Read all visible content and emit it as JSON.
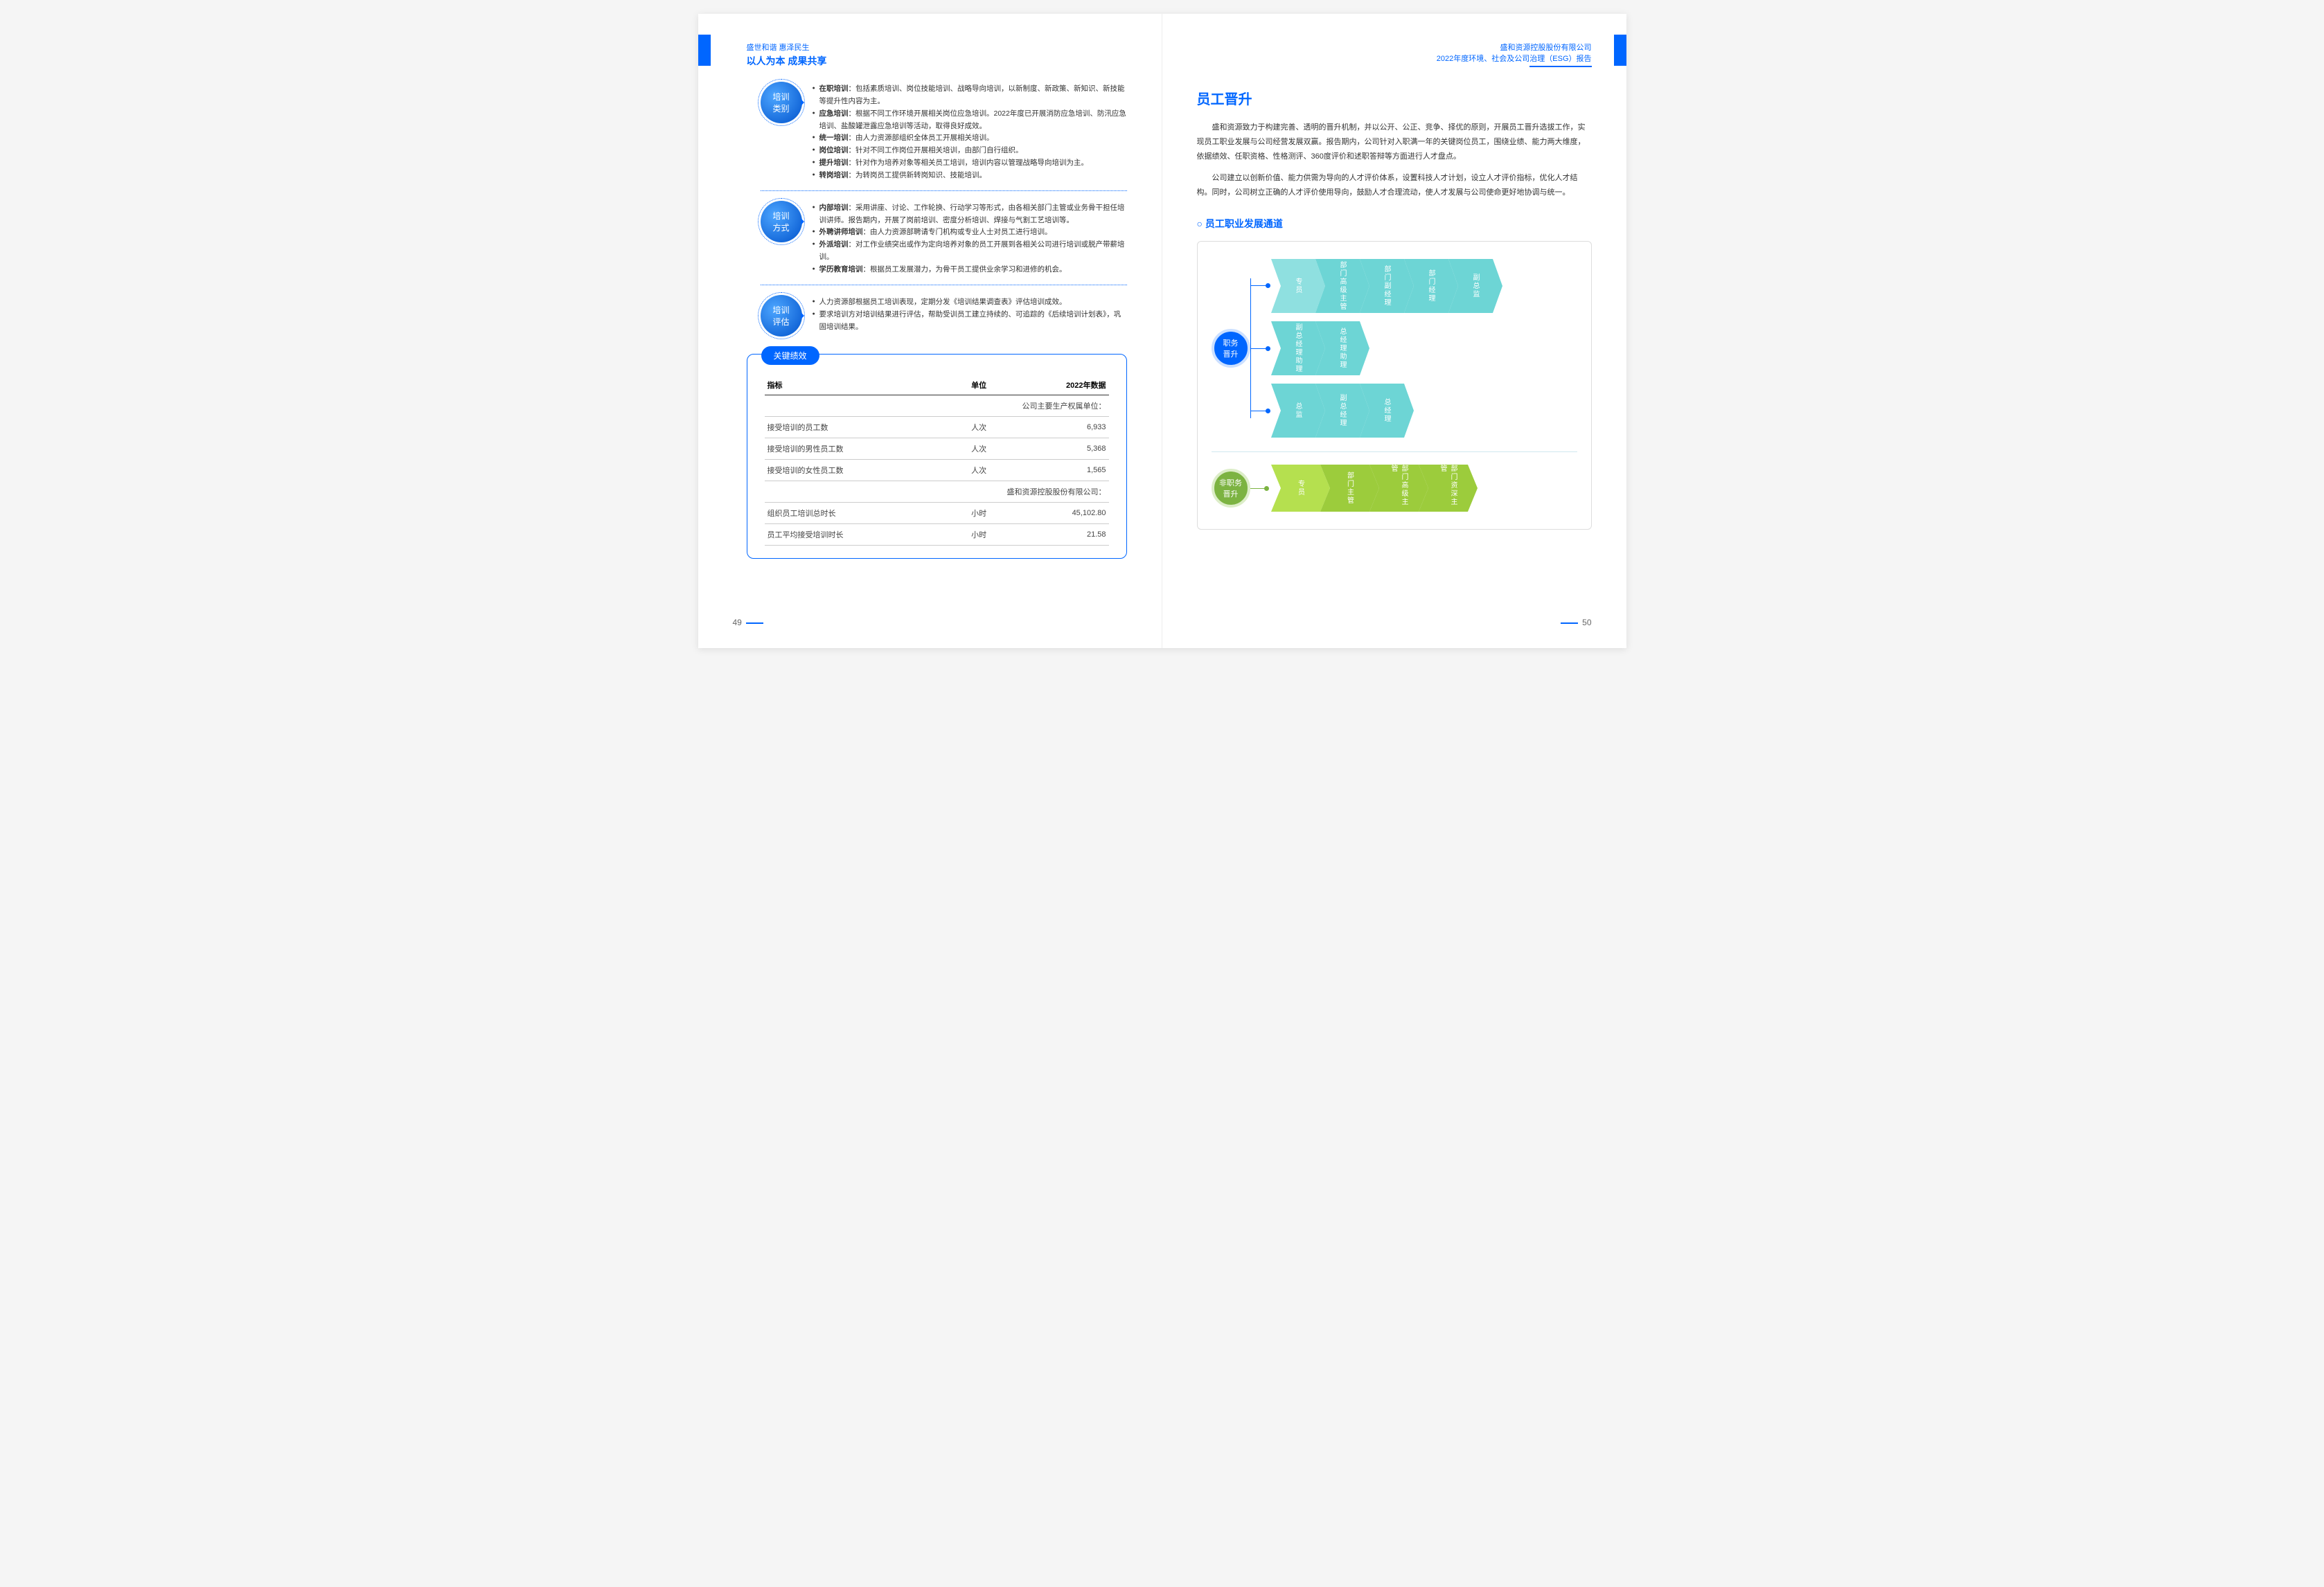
{
  "colors": {
    "primary": "#0066ff",
    "teal": "#5fcfcf",
    "teal_light": "#a8e6e6",
    "green": "#9ccc3c",
    "green_dark": "#7cb342"
  },
  "left": {
    "header_sub": "盛世和谐 惠泽民生",
    "header_main": "以人为本 成果共享",
    "sections": [
      {
        "badge": [
          "培训",
          "类别"
        ],
        "items": [
          "<b>在职培训</b>：包括素质培训、岗位技能培训、战略导向培训，以新制度、新政策、新知识、新技能等提升性内容为主。",
          "<b>应急培训</b>：根据不同工作环境开展相关岗位应急培训。2022年度已开展消防应急培训、防汛应急培训、盐酸罐泄露应急培训等活动，取得良好成效。",
          "<b>统一培训</b>：由人力资源部组织全体员工开展相关培训。",
          "<b>岗位培训</b>：针对不同工作岗位开展相关培训，由部门自行组织。",
          "<b>提升培训</b>：针对作为培养对象等相关员工培训，培训内容以管理战略导向培训为主。",
          "<b>转岗培训</b>：为转岗员工提供新转岗知识、技能培训。"
        ]
      },
      {
        "badge": [
          "培训",
          "方式"
        ],
        "items": [
          "<b>内部培训</b>：采用讲座、讨论、工作轮换、行动学习等形式，由各相关部门主管或业务骨干担任培训讲师。报告期内，开展了岗前培训、密度分析培训、焊接与气割工艺培训等。",
          "<b>外聘讲师培训</b>：由人力资源部聘请专门机构或专业人士对员工进行培训。",
          "<b>外派培训</b>：对工作业绩突出或作为定向培养对象的员工开展到各相关公司进行培训或脱产带薪培训。",
          "<b>学历教育培训</b>：根据员工发展潜力，为骨干员工提供业余学习和进修的机会。"
        ]
      },
      {
        "badge": [
          "培训",
          "评估"
        ],
        "items": [
          "人力资源部根据员工培训表现，定期分发《培训结果调查表》评估培训成效。",
          "要求培训方对培训结果进行评估，帮助受训员工建立持续的、可追踪的《后续培训计划表》，巩固培训结果。"
        ]
      }
    ],
    "kpi": {
      "label": "关键绩效",
      "headers": [
        "指标",
        "单位",
        "2022年数据"
      ],
      "rows": [
        {
          "type": "section",
          "cells": [
            "公司主要生产权属单位：",
            "",
            ""
          ]
        },
        {
          "type": "data",
          "cells": [
            "接受培训的员工数",
            "人次",
            "6,933"
          ]
        },
        {
          "type": "data",
          "cells": [
            "接受培训的男性员工数",
            "人次",
            "5,368"
          ]
        },
        {
          "type": "data",
          "cells": [
            "接受培训的女性员工数",
            "人次",
            "1,565"
          ]
        },
        {
          "type": "section",
          "cells": [
            "盛和资源控股股份有限公司：",
            "",
            ""
          ]
        },
        {
          "type": "data",
          "cells": [
            "组织员工培训总时长",
            "小时",
            "45,102.80"
          ]
        },
        {
          "type": "data",
          "cells": [
            "员工平均接受培训时长",
            "小时",
            "21.58"
          ]
        }
      ]
    },
    "page_num": "49"
  },
  "right": {
    "header_l1": "盛和资源控股股份有限公司",
    "header_l2": "2022年度环境、社会及公司治理（ESG）报告",
    "title": "员工晋升",
    "paras": [
      "盛和资源致力于构建完善、透明的晋升机制，并以公开、公正、竞争、择优的原则，开展员工晋升选拔工作，实现员工职业发展与公司经营发展双赢。报告期内，公司针对入职满一年的关键岗位员工，围绕业绩、能力两大维度，依据绩效、任职资格、性格测评、360度评价和述职答辩等方面进行人才盘点。",
      "公司建立以创新价值、能力供需为导向的人才评价体系，设置科技人才计划，设立人才评价指标，优化人才结构。同时，公司树立正确的人才评价使用导向，鼓励人才合理流动，使人才发展与公司使命更好地协调与统一。"
    ],
    "sub_heading": "员工职业发展通道",
    "tracks": {
      "job": {
        "label": [
          "职务",
          "晋升"
        ],
        "color": "blue",
        "rows": [
          {
            "color": "#6dd5d5",
            "items": [
              "专员",
              "部门高级主管",
              "部门副经理",
              "部门经理",
              "副总监"
            ]
          },
          {
            "color": "#6dd5d5",
            "items": [
              "副总经理助理",
              "总经理助理"
            ]
          },
          {
            "color": "#6dd5d5",
            "items": [
              "总监",
              "副总经理",
              "总经理"
            ]
          }
        ]
      },
      "nonjob": {
        "label": [
          "非职务",
          "晋升"
        ],
        "color": "green",
        "rows": [
          {
            "color": "#9ccc3c",
            "items": [
              "专员",
              "部门主管",
              "部门高级主管",
              "部门资深主管"
            ]
          }
        ]
      }
    },
    "page_num": "50"
  }
}
